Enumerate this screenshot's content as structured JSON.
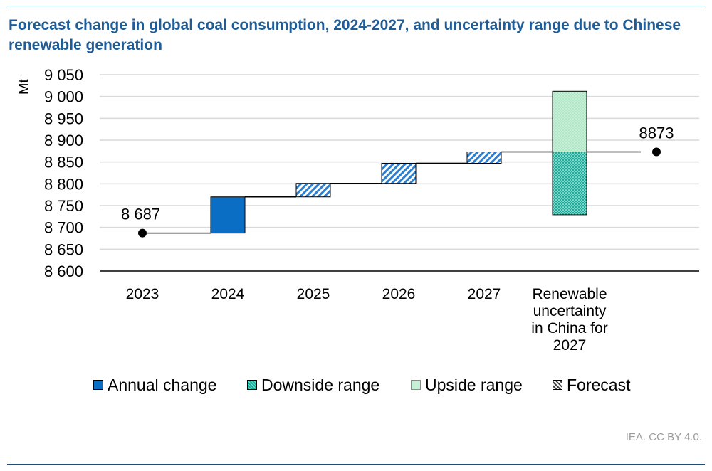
{
  "title": "Forecast change in global coal consumption, 2024-2027, and uncertainty range due to Chinese renewable generation",
  "source": "IEA. CC BY 4.0.",
  "colors": {
    "annual": "#0a6fc4",
    "forecast": "#2d7fd1",
    "downside": "#1cae9a",
    "upside": "#bdeccf",
    "connector": "#000000",
    "grid": "#d9d9d9",
    "title": "#1f5d99"
  },
  "chart_data": {
    "type": "waterfall",
    "title": "Forecast change in global coal consumption, 2024-2027, and uncertainty range due to Chinese renewable generation",
    "ylabel": "Mt",
    "ylim": [
      8600,
      9050
    ],
    "yticks": [
      8600,
      8650,
      8700,
      8750,
      8800,
      8850,
      8900,
      8950,
      9000,
      9050
    ],
    "ytick_labels": [
      "8 600",
      "8 650",
      "8 700",
      "8 750",
      "8 800",
      "8 850",
      "8 900",
      "8 950",
      "9 000",
      "9 050"
    ],
    "categories": [
      "2023",
      "2024",
      "2025",
      "2026",
      "2027",
      "Renewable uncertainty in China for 2027",
      ""
    ],
    "category_lines": [
      [
        "2023"
      ],
      [
        "2024"
      ],
      [
        "2025"
      ],
      [
        "2026"
      ],
      [
        "2027"
      ],
      [
        "Renewable",
        "uncertainty",
        "in China for",
        "2027"
      ],
      []
    ],
    "start": {
      "category": "2023",
      "value": 8687,
      "label": "8 687"
    },
    "bars": [
      {
        "category": "2024",
        "kind": "Annual change",
        "from": 8687,
        "to": 8770
      },
      {
        "category": "2025",
        "kind": "Forecast",
        "from": 8770,
        "to": 8801
      },
      {
        "category": "2026",
        "kind": "Forecast",
        "from": 8801,
        "to": 8847
      },
      {
        "category": "2027",
        "kind": "Forecast",
        "from": 8847,
        "to": 8873
      }
    ],
    "uncertainty": {
      "category": "Renewable uncertainty in China for 2027",
      "downside": {
        "from": 8729,
        "to": 8873
      },
      "upside": {
        "from": 8873,
        "to": 9012
      }
    },
    "end": {
      "value": 8873,
      "label": "8873"
    },
    "legend": [
      "Annual change",
      "Downside range",
      "Upside range",
      "Forecast"
    ]
  }
}
